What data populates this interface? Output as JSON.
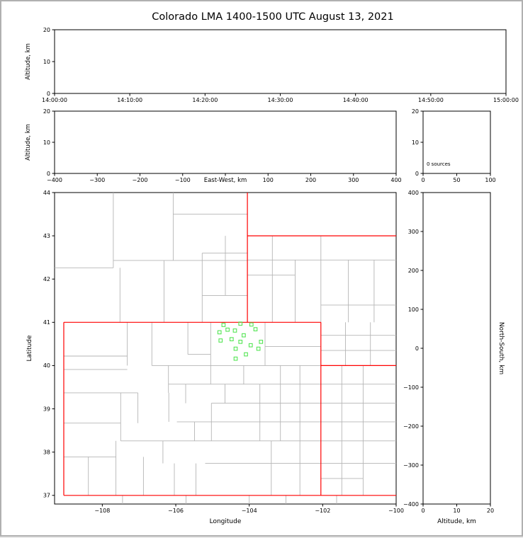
{
  "title": "Colorado LMA 1400-1500 UTC August 13, 2021",
  "colors": {
    "state_border": "#ff0000",
    "county_border": "#b5b5b5",
    "station_marker": "#55e555",
    "axis": "#000000",
    "background": "#ffffff",
    "figure_border": "#b0b0b0"
  },
  "chart_data": {
    "type": "scatter",
    "description": "Lightning Mapping Array multi-panel plot (time-height, east-west height, altitude histogram, plan view map, north-south height). No lightning sources plotted; green squares are LMA station locations.",
    "panels": [
      {
        "id": "time_height",
        "xlabel": "",
        "ylabel": "Altitude, km",
        "xlim": [
          0,
          3600
        ],
        "ylim": [
          0,
          20
        ],
        "xtick_values": [
          0,
          600,
          1200,
          1800,
          2400,
          3000,
          3600
        ],
        "xtick_labels": [
          "14:00:00",
          "14:10:00",
          "14:20:00",
          "14:30:00",
          "14:40:00",
          "14:50:00",
          "15:00:00"
        ],
        "ytick_values": [
          0,
          10,
          20
        ],
        "ytick_labels": [
          "0",
          "10",
          "20"
        ],
        "points": []
      },
      {
        "id": "ew_height",
        "xlabel": "East-West, km",
        "ylabel": "Altitude, km",
        "xlim": [
          -400,
          400
        ],
        "ylim": [
          0,
          20
        ],
        "xtick_values": [
          -400,
          -300,
          -200,
          -100,
          0,
          100,
          200,
          300,
          400
        ],
        "xtick_labels": [
          "−400",
          "−300",
          "−200",
          "−100",
          "",
          "100",
          "200",
          "300",
          "400"
        ],
        "ytick_values": [
          0,
          10,
          20
        ],
        "ytick_labels": [
          "0",
          "10",
          "20"
        ],
        "points": []
      },
      {
        "id": "altitude_histogram",
        "xlabel": "",
        "ylabel": "",
        "annotation": "0 sources",
        "xlim": [
          0,
          100
        ],
        "ylim": [
          0,
          20
        ],
        "xtick_values": [
          0,
          50,
          100
        ],
        "xtick_labels": [
          "0",
          "50",
          "100"
        ],
        "ytick_values": [
          0,
          10,
          20
        ],
        "ytick_labels": [
          "0",
          "10",
          "20"
        ],
        "points": []
      },
      {
        "id": "plan_view",
        "xlabel": "Longitude",
        "ylabel": "Latitude",
        "xlim": [
          -109.3,
          -100.0
        ],
        "ylim": [
          36.8,
          44.0
        ],
        "xtick_values": [
          -108,
          -106,
          -104,
          -102,
          -100
        ],
        "xtick_labels": [
          "−108",
          "−106",
          "−104",
          "−102",
          "−100"
        ],
        "ytick_values": [
          37,
          38,
          39,
          40,
          41,
          42,
          43,
          44
        ],
        "ytick_labels": [
          "37",
          "38",
          "39",
          "40",
          "41",
          "42",
          "43",
          "44"
        ],
        "stations": [
          [
            -104.7,
            40.94
          ],
          [
            -104.24,
            40.97
          ],
          [
            -104.59,
            40.83
          ],
          [
            -103.94,
            40.95
          ],
          [
            -104.81,
            40.77
          ],
          [
            -104.39,
            40.81
          ],
          [
            -103.83,
            40.84
          ],
          [
            -104.15,
            40.7
          ],
          [
            -104.48,
            40.61
          ],
          [
            -104.78,
            40.58
          ],
          [
            -104.24,
            40.55
          ],
          [
            -103.68,
            40.55
          ],
          [
            -103.96,
            40.47
          ],
          [
            -104.37,
            40.39
          ],
          [
            -103.75,
            40.39
          ],
          [
            -104.09,
            40.26
          ],
          [
            -104.37,
            40.16
          ]
        ],
        "state_borders": [
          [
            [
              -109.05,
              37.0
            ],
            [
              -109.05,
              41.0
            ]
          ],
          [
            [
              -109.05,
              41.0
            ],
            [
              -102.05,
              41.0
            ]
          ],
          [
            [
              -102.05,
              41.0
            ],
            [
              -102.05,
              37.0
            ]
          ],
          [
            [
              -109.05,
              37.0
            ],
            [
              -100.0,
              37.0
            ]
          ],
          [
            [
              -104.05,
              41.0
            ],
            [
              -104.05,
              44.0
            ]
          ],
          [
            [
              -104.05,
              43.0
            ],
            [
              -100.0,
              43.0
            ]
          ],
          [
            [
              -102.05,
              40.0
            ],
            [
              -100.0,
              40.0
            ]
          ]
        ],
        "county_borders": [
          [
            [
              -109.3,
              42.26
            ],
            [
              -107.7,
              42.26
            ]
          ],
          [
            [
              -107.7,
              42.26
            ],
            [
              -107.7,
              44.0
            ]
          ],
          [
            [
              -107.7,
              42.43
            ],
            [
              -104.05,
              42.43
            ]
          ],
          [
            [
              -106.07,
              42.43
            ],
            [
              -106.07,
              44.0
            ]
          ],
          [
            [
              -106.07,
              43.5
            ],
            [
              -104.05,
              43.5
            ]
          ],
          [
            [
              -105.28,
              41.0
            ],
            [
              -105.28,
              42.6
            ]
          ],
          [
            [
              -105.28,
              42.6
            ],
            [
              -104.05,
              42.6
            ]
          ],
          [
            [
              -106.32,
              41.0
            ],
            [
              -106.32,
              42.43
            ]
          ],
          [
            [
              -107.52,
              41.0
            ],
            [
              -107.52,
              42.26
            ]
          ],
          [
            [
              -104.65,
              41.62
            ],
            [
              -104.65,
              43.0
            ]
          ],
          [
            [
              -105.28,
              41.62
            ],
            [
              -104.05,
              41.62
            ]
          ],
          [
            [
              -103.37,
              41.0
            ],
            [
              -103.37,
              43.0
            ]
          ],
          [
            [
              -102.75,
              41.0
            ],
            [
              -102.75,
              42.44
            ]
          ],
          [
            [
              -102.05,
              41.0
            ],
            [
              -102.05,
              43.0
            ]
          ],
          [
            [
              -101.3,
              41.0
            ],
            [
              -101.3,
              42.44
            ]
          ],
          [
            [
              -100.6,
              41.0
            ],
            [
              -100.6,
              42.44
            ]
          ],
          [
            [
              -104.05,
              42.44
            ],
            [
              -100.0,
              42.44
            ]
          ],
          [
            [
              -104.05,
              42.09
            ],
            [
              -102.75,
              42.09
            ]
          ],
          [
            [
              -102.05,
              41.4
            ],
            [
              -100.0,
              41.4
            ]
          ],
          [
            [
              -101.38,
              40.0
            ],
            [
              -101.38,
              41.0
            ]
          ],
          [
            [
              -100.7,
              40.0
            ],
            [
              -100.7,
              41.0
            ]
          ],
          [
            [
              -102.05,
              40.35
            ],
            [
              -100.0,
              40.35
            ]
          ],
          [
            [
              -102.05,
              40.7
            ],
            [
              -100.0,
              40.7
            ]
          ],
          [
            [
              -101.48,
              37.0
            ],
            [
              -101.48,
              40.0
            ]
          ],
          [
            [
              -100.9,
              37.0
            ],
            [
              -100.9,
              40.0
            ]
          ],
          [
            [
              -102.05,
              39.57
            ],
            [
              -100.0,
              39.57
            ]
          ],
          [
            [
              -102.05,
              39.13
            ],
            [
              -100.0,
              39.13
            ]
          ],
          [
            [
              -102.05,
              38.7
            ],
            [
              -100.0,
              38.7
            ]
          ],
          [
            [
              -102.05,
              38.26
            ],
            [
              -100.0,
              38.26
            ]
          ],
          [
            [
              -102.05,
              37.74
            ],
            [
              -100.0,
              37.74
            ]
          ],
          [
            [
              -102.05,
              37.39
            ],
            [
              -100.9,
              37.39
            ]
          ],
          [
            [
              -105.05,
              39.57
            ],
            [
              -105.05,
              41.0
            ]
          ],
          [
            [
              -103.57,
              40.0
            ],
            [
              -103.57,
              41.0
            ]
          ],
          [
            [
              -106.65,
              40.0
            ],
            [
              -106.65,
              41.0
            ]
          ],
          [
            [
              -107.32,
              40.0
            ],
            [
              -107.32,
              41.0
            ]
          ],
          [
            [
              -106.65,
              40.0
            ],
            [
              -102.05,
              40.0
            ]
          ],
          [
            [
              -103.57,
              40.44
            ],
            [
              -102.05,
              40.44
            ]
          ],
          [
            [
              -109.05,
              40.22
            ],
            [
              -107.32,
              40.22
            ]
          ],
          [
            [
              -109.05,
              39.91
            ],
            [
              -107.32,
              39.91
            ]
          ],
          [
            [
              -105.67,
              40.26
            ],
            [
              -105.67,
              41.0
            ]
          ],
          [
            [
              -105.67,
              40.26
            ],
            [
              -105.05,
              40.26
            ]
          ],
          [
            [
              -106.2,
              39.37
            ],
            [
              -106.2,
              40.0
            ]
          ],
          [
            [
              -106.2,
              39.57
            ],
            [
              -102.05,
              39.57
            ]
          ],
          [
            [
              -105.03,
              39.13
            ],
            [
              -102.05,
              39.13
            ]
          ],
          [
            [
              -105.97,
              38.7
            ],
            [
              -102.05,
              38.7
            ]
          ],
          [
            [
              -107.5,
              38.26
            ],
            [
              -102.05,
              38.26
            ]
          ],
          [
            [
              -105.2,
              37.74
            ],
            [
              -102.05,
              37.74
            ]
          ],
          [
            [
              -105.03,
              38.26
            ],
            [
              -105.03,
              39.13
            ]
          ],
          [
            [
              -104.66,
              39.13
            ],
            [
              -104.66,
              39.57
            ]
          ],
          [
            [
              -104.15,
              39.57
            ],
            [
              -104.15,
              40.0
            ]
          ],
          [
            [
              -103.71,
              38.26
            ],
            [
              -103.71,
              39.57
            ]
          ],
          [
            [
              -103.15,
              38.26
            ],
            [
              -103.15,
              40.0
            ]
          ],
          [
            [
              -102.62,
              37.0
            ],
            [
              -102.62,
              40.0
            ]
          ],
          [
            [
              -103.4,
              37.0
            ],
            [
              -103.4,
              38.26
            ]
          ],
          [
            [
              -109.05,
              39.37
            ],
            [
              -107.03,
              39.37
            ]
          ],
          [
            [
              -109.05,
              38.67
            ],
            [
              -107.5,
              38.67
            ]
          ],
          [
            [
              -109.05,
              37.89
            ],
            [
              -107.63,
              37.89
            ]
          ],
          [
            [
              -108.38,
              37.0
            ],
            [
              -108.38,
              37.89
            ]
          ],
          [
            [
              -107.63,
              37.0
            ],
            [
              -107.63,
              38.26
            ]
          ],
          [
            [
              -106.88,
              37.0
            ],
            [
              -106.88,
              37.89
            ]
          ],
          [
            [
              -106.04,
              37.0
            ],
            [
              -106.04,
              37.74
            ]
          ],
          [
            [
              -105.45,
              37.0
            ],
            [
              -105.45,
              37.74
            ]
          ],
          [
            [
              -107.5,
              38.26
            ],
            [
              -107.5,
              39.37
            ]
          ],
          [
            [
              -107.03,
              38.67
            ],
            [
              -107.03,
              39.37
            ]
          ],
          [
            [
              -106.19,
              38.7
            ],
            [
              -106.19,
              39.37
            ]
          ],
          [
            [
              -105.73,
              39.13
            ],
            [
              -105.73,
              39.57
            ]
          ],
          [
            [
              -106.35,
              37.74
            ],
            [
              -106.35,
              38.26
            ]
          ],
          [
            [
              -105.49,
              38.26
            ],
            [
              -105.49,
              38.7
            ]
          ],
          [
            [
              -107.45,
              36.8
            ],
            [
              -107.45,
              37.0
            ]
          ],
          [
            [
              -105.72,
              36.8
            ],
            [
              -105.72,
              37.0
            ]
          ],
          [
            [
              -104.0,
              36.8
            ],
            [
              -104.0,
              37.0
            ]
          ],
          [
            [
              -103.0,
              36.8
            ],
            [
              -103.0,
              37.0
            ]
          ],
          [
            [
              -101.62,
              36.8
            ],
            [
              -101.62,
              37.0
            ]
          ]
        ]
      },
      {
        "id": "ns_height",
        "xlabel": "Altitude, km",
        "ylabel": "North-South, km",
        "xlim": [
          0,
          20
        ],
        "ylim": [
          -400,
          400
        ],
        "xtick_values": [
          0,
          10,
          20
        ],
        "xtick_labels": [
          "0",
          "10",
          "20"
        ],
        "ytick_values": [
          400,
          300,
          200,
          100,
          0,
          -100,
          -200,
          -300,
          -400
        ],
        "ytick_labels": [
          "400",
          "300",
          "200",
          "100",
          "0",
          "−100",
          "−200",
          "−300",
          "−400"
        ],
        "points": []
      }
    ]
  }
}
